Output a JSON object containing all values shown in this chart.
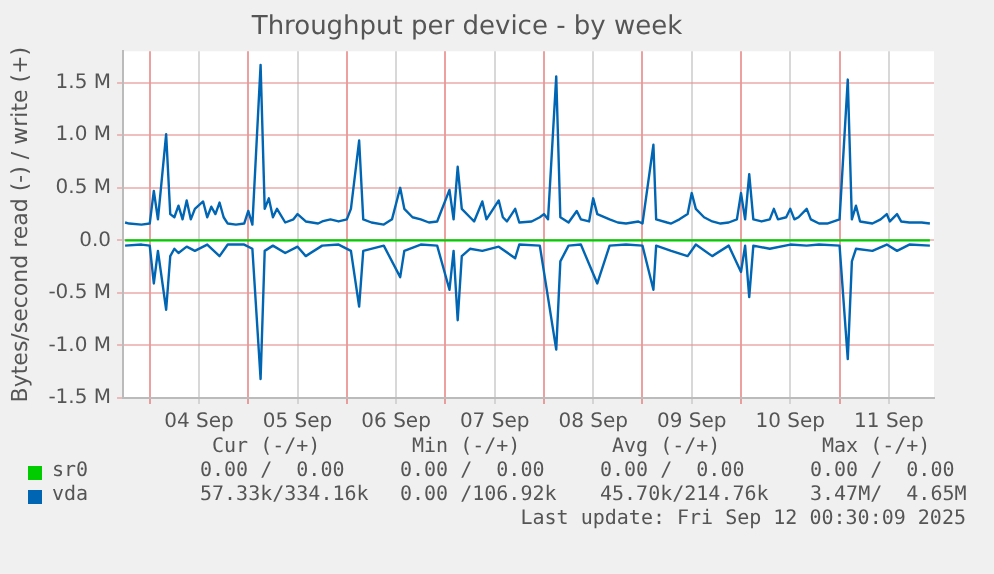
{
  "chart_data": {
    "type": "line",
    "title": "Throughput per device - by week",
    "ylabel": "Bytes/second read (-) / write (+)",
    "xlim": [
      "2025-09-03T17:30",
      "2025-09-11T23:00"
    ],
    "xticks": [
      {
        "value": "2025-09-04T00:00",
        "label": null
      },
      {
        "value": "2025-09-04T12:00",
        "label": "04 Sep"
      },
      {
        "value": "2025-09-05T00:00",
        "label": null
      },
      {
        "value": "2025-09-05T12:00",
        "label": "05 Sep"
      },
      {
        "value": "2025-09-06T00:00",
        "label": null
      },
      {
        "value": "2025-09-06T12:00",
        "label": "06 Sep"
      },
      {
        "value": "2025-09-07T00:00",
        "label": null
      },
      {
        "value": "2025-09-07T12:00",
        "label": "07 Sep"
      },
      {
        "value": "2025-09-08T00:00",
        "label": null
      },
      {
        "value": "2025-09-08T12:00",
        "label": "08 Sep"
      },
      {
        "value": "2025-09-09T00:00",
        "label": null
      },
      {
        "value": "2025-09-09T12:00",
        "label": "09 Sep"
      },
      {
        "value": "2025-09-10T00:00",
        "label": null
      },
      {
        "value": "2025-09-10T12:00",
        "label": "10 Sep"
      },
      {
        "value": "2025-09-11T00:00",
        "label": null
      },
      {
        "value": "2025-09-11T12:00",
        "label": "11 Sep"
      }
    ],
    "ylim": [
      -1.5,
      1.8
    ],
    "yticks": [
      {
        "value": -1.5,
        "label": "-1.5 M"
      },
      {
        "value": -1,
        "label": "-1.0 M"
      },
      {
        "value": -0.5,
        "label": "-0.5 M"
      },
      {
        "value": 0,
        "label": "0.0"
      },
      {
        "value": 0.5,
        "label": "0.5 M"
      },
      {
        "value": 1,
        "label": "1.0 M"
      },
      {
        "value": 1.5,
        "label": "1.5 M"
      }
    ],
    "grid": true,
    "legend": "bottom",
    "marker": "none",
    "line_style": "solid",
    "series": [
      {
        "name": "sr0",
        "color": "#00cc00",
        "x": [
          "2025-09-03T18:00",
          "2025-09-11T22:00"
        ],
        "values": [
          0,
          0
        ]
      },
      {
        "name": "vda",
        "color": "#0066b3",
        "x": [
          "2025-09-03T18:00",
          "2025-09-03T19:00",
          "2025-09-03T22:00",
          "2025-09-04T00:00",
          "2025-09-04T01:00",
          "2025-09-04T02:00",
          "2025-09-04T04:00",
          "2025-09-04T05:00",
          "2025-09-04T06:00",
          "2025-09-04T07:00",
          "2025-09-04T08:00",
          "2025-09-04T09:00",
          "2025-09-04T10:00",
          "2025-09-04T11:00",
          "2025-09-04T13:00",
          "2025-09-04T14:00",
          "2025-09-04T15:00",
          "2025-09-04T16:00",
          "2025-09-04T17:00",
          "2025-09-04T18:00",
          "2025-09-04T19:00",
          "2025-09-04T21:00",
          "2025-09-04T23:00",
          "2025-09-05T00:00",
          "2025-09-05T01:00",
          "2025-09-05T03:00",
          "2025-09-05T04:00",
          "2025-09-05T05:00",
          "2025-09-05T06:00",
          "2025-09-05T07:00",
          "2025-09-05T09:00",
          "2025-09-05T11:00",
          "2025-09-05T12:00",
          "2025-09-05T14:00",
          "2025-09-05T17:00",
          "2025-09-05T18:00",
          "2025-09-05T20:00",
          "2025-09-05T22:00",
          "2025-09-06T00:00",
          "2025-09-06T01:00",
          "2025-09-06T03:00",
          "2025-09-06T04:00",
          "2025-09-06T06:00",
          "2025-09-06T09:00",
          "2025-09-06T11:00",
          "2025-09-06T13:00",
          "2025-09-06T14:00",
          "2025-09-06T16:00",
          "2025-09-06T18:00",
          "2025-09-06T20:00",
          "2025-09-06T22:00",
          "2025-09-07T01:00",
          "2025-09-07T02:00",
          "2025-09-07T03:00",
          "2025-09-07T04:00",
          "2025-09-07T06:00",
          "2025-09-07T07:00",
          "2025-09-07T09:00",
          "2025-09-07T10:00",
          "2025-09-07T13:00",
          "2025-09-07T14:00",
          "2025-09-07T15:00",
          "2025-09-07T17:00",
          "2025-09-07T18:00",
          "2025-09-07T21:00",
          "2025-09-07T23:00",
          "2025-09-08T00:00",
          "2025-09-08T01:00",
          "2025-09-08T03:00",
          "2025-09-08T04:00",
          "2025-09-08T06:00",
          "2025-09-08T08:00",
          "2025-09-08T09:00",
          "2025-09-08T11:00",
          "2025-09-08T12:00",
          "2025-09-08T13:00",
          "2025-09-08T16:00",
          "2025-09-08T18:00",
          "2025-09-08T20:00",
          "2025-09-08T23:00",
          "2025-09-09T00:00",
          "2025-09-09T02:40",
          "2025-09-09T03:20",
          "2025-09-09T06:00",
          "2025-09-09T07:00",
          "2025-09-09T09:00",
          "2025-09-09T11:00",
          "2025-09-09T12:00",
          "2025-09-09T13:00",
          "2025-09-09T15:00",
          "2025-09-09T17:00",
          "2025-09-09T19:00",
          "2025-09-09T21:00",
          "2025-09-09T23:00",
          "2025-09-10T00:00",
          "2025-09-10T01:00",
          "2025-09-10T02:00",
          "2025-09-10T03:00",
          "2025-09-10T05:00",
          "2025-09-10T07:00",
          "2025-09-10T08:00",
          "2025-09-10T09:00",
          "2025-09-10T11:00",
          "2025-09-10T12:00",
          "2025-09-10T13:00",
          "2025-09-10T14:00",
          "2025-09-10T16:00",
          "2025-09-10T17:00",
          "2025-09-10T19:00",
          "2025-09-10T21:00",
          "2025-09-11T00:00",
          "2025-09-11T02:00",
          "2025-09-11T03:00",
          "2025-09-11T04:00",
          "2025-09-11T05:00",
          "2025-09-11T08:00",
          "2025-09-11T10:00",
          "2025-09-11T11:30",
          "2025-09-11T12:15",
          "2025-09-11T14:00",
          "2025-09-11T15:00",
          "2025-09-11T17:00",
          "2025-09-11T20:00",
          "2025-09-11T22:00"
        ],
        "values": [
          0.17,
          0.16,
          0.15,
          0.16,
          0.47,
          0.2,
          1.01,
          0.25,
          0.22,
          0.33,
          0.2,
          0.38,
          0.2,
          0.3,
          0.37,
          0.22,
          0.32,
          0.25,
          0.36,
          0.22,
          0.16,
          0.15,
          0.16,
          0.28,
          0.15,
          1.67,
          0.3,
          0.4,
          0.22,
          0.3,
          0.17,
          0.2,
          0.25,
          0.18,
          0.16,
          0.18,
          0.2,
          0.18,
          0.2,
          0.3,
          0.95,
          0.2,
          0.17,
          0.15,
          0.2,
          0.5,
          0.3,
          0.22,
          0.2,
          0.17,
          0.18,
          0.48,
          0.2,
          0.7,
          0.3,
          0.22,
          0.18,
          0.37,
          0.2,
          0.38,
          0.22,
          0.18,
          0.3,
          0.17,
          0.18,
          0.22,
          0.25,
          0.2,
          1.56,
          0.22,
          0.17,
          0.28,
          0.2,
          0.18,
          0.4,
          0.25,
          0.2,
          0.17,
          0.16,
          0.18,
          0.16,
          0.91,
          0.2,
          0.17,
          0.16,
          0.2,
          0.25,
          0.45,
          0.3,
          0.22,
          0.18,
          0.16,
          0.17,
          0.2,
          0.45,
          0.2,
          0.63,
          0.2,
          0.18,
          0.2,
          0.3,
          0.2,
          0.22,
          0.3,
          0.2,
          0.22,
          0.3,
          0.2,
          0.16,
          0.16,
          0.2,
          1.53,
          0.2,
          0.33,
          0.18,
          0.16,
          0.2,
          0.25,
          0.18,
          0.25,
          0.18,
          0.17,
          0.17,
          0.16
        ]
      },
      {
        "color": "#0066b3",
        "x": [
          "2025-09-03T18:00",
          "2025-09-03T22:00",
          "2025-09-04T00:00",
          "2025-09-04T01:00",
          "2025-09-04T02:00",
          "2025-09-04T04:00",
          "2025-09-04T05:00",
          "2025-09-04T06:00",
          "2025-09-04T07:00",
          "2025-09-04T09:00",
          "2025-09-04T11:00",
          "2025-09-04T14:00",
          "2025-09-04T17:00",
          "2025-09-04T19:00",
          "2025-09-04T23:00",
          "2025-09-05T01:00",
          "2025-09-05T03:00",
          "2025-09-05T04:00",
          "2025-09-05T06:00",
          "2025-09-05T09:00",
          "2025-09-05T12:00",
          "2025-09-05T14:00",
          "2025-09-05T18:00",
          "2025-09-05T22:00",
          "2025-09-06T01:00",
          "2025-09-06T03:00",
          "2025-09-06T04:00",
          "2025-09-06T09:00",
          "2025-09-06T13:00",
          "2025-09-06T14:00",
          "2025-09-06T18:00",
          "2025-09-06T22:00",
          "2025-09-07T01:00",
          "2025-09-07T02:00",
          "2025-09-07T03:00",
          "2025-09-07T04:00",
          "2025-09-07T06:00",
          "2025-09-07T09:00",
          "2025-09-07T13:00",
          "2025-09-07T17:00",
          "2025-09-07T18:00",
          "2025-09-07T23:00",
          "2025-09-08T03:00",
          "2025-09-08T04:00",
          "2025-09-08T06:00",
          "2025-09-08T09:00",
          "2025-09-08T13:00",
          "2025-09-08T16:00",
          "2025-09-08T20:00",
          "2025-09-09T00:00",
          "2025-09-09T02:40",
          "2025-09-09T03:20",
          "2025-09-09T07:00",
          "2025-09-09T11:00",
          "2025-09-09T13:00",
          "2025-09-09T17:00",
          "2025-09-09T21:00",
          "2025-09-10T00:00",
          "2025-09-10T01:00",
          "2025-09-10T02:00",
          "2025-09-10T03:00",
          "2025-09-10T07:00",
          "2025-09-10T12:00",
          "2025-09-10T16:00",
          "2025-09-10T19:00",
          "2025-09-11T00:00",
          "2025-09-11T02:00",
          "2025-09-11T03:00",
          "2025-09-11T04:00",
          "2025-09-11T08:00",
          "2025-09-11T11:30",
          "2025-09-11T14:00",
          "2025-09-11T17:00",
          "2025-09-11T22:00"
        ],
        "values": [
          -0.05,
          -0.04,
          -0.05,
          -0.41,
          -0.1,
          -0.66,
          -0.15,
          -0.08,
          -0.12,
          -0.06,
          -0.1,
          -0.04,
          -0.15,
          -0.04,
          -0.04,
          -0.08,
          -1.32,
          -0.1,
          -0.05,
          -0.12,
          -0.06,
          -0.15,
          -0.05,
          -0.04,
          -0.1,
          -0.63,
          -0.1,
          -0.05,
          -0.35,
          -0.1,
          -0.04,
          -0.05,
          -0.47,
          -0.1,
          -0.76,
          -0.15,
          -0.08,
          -0.1,
          -0.06,
          -0.17,
          -0.04,
          -0.05,
          -1.04,
          -0.2,
          -0.05,
          -0.04,
          -0.41,
          -0.05,
          -0.04,
          -0.05,
          -0.47,
          -0.05,
          -0.1,
          -0.15,
          -0.04,
          -0.15,
          -0.05,
          -0.3,
          -0.05,
          -0.54,
          -0.05,
          -0.08,
          -0.04,
          -0.05,
          -0.04,
          -0.05,
          -1.13,
          -0.2,
          -0.08,
          -0.1,
          -0.04,
          -0.1,
          -0.04,
          -0.05
        ]
      }
    ],
    "annotations": [
      "Cur (-/+)",
      "Min (-/+)",
      "Avg (-/+)",
      "Max (-/+)",
      "0.00 /  0.00",
      "0.00 /  0.00",
      "0.00 /  0.00",
      "0.00 /  0.00",
      "57.33k/334.16k",
      "0.00 /106.92k",
      "45.70k/214.76k",
      "3.47M/  4.65M",
      "Last update: Fri Sep 12 00:30:09 2025"
    ]
  }
}
